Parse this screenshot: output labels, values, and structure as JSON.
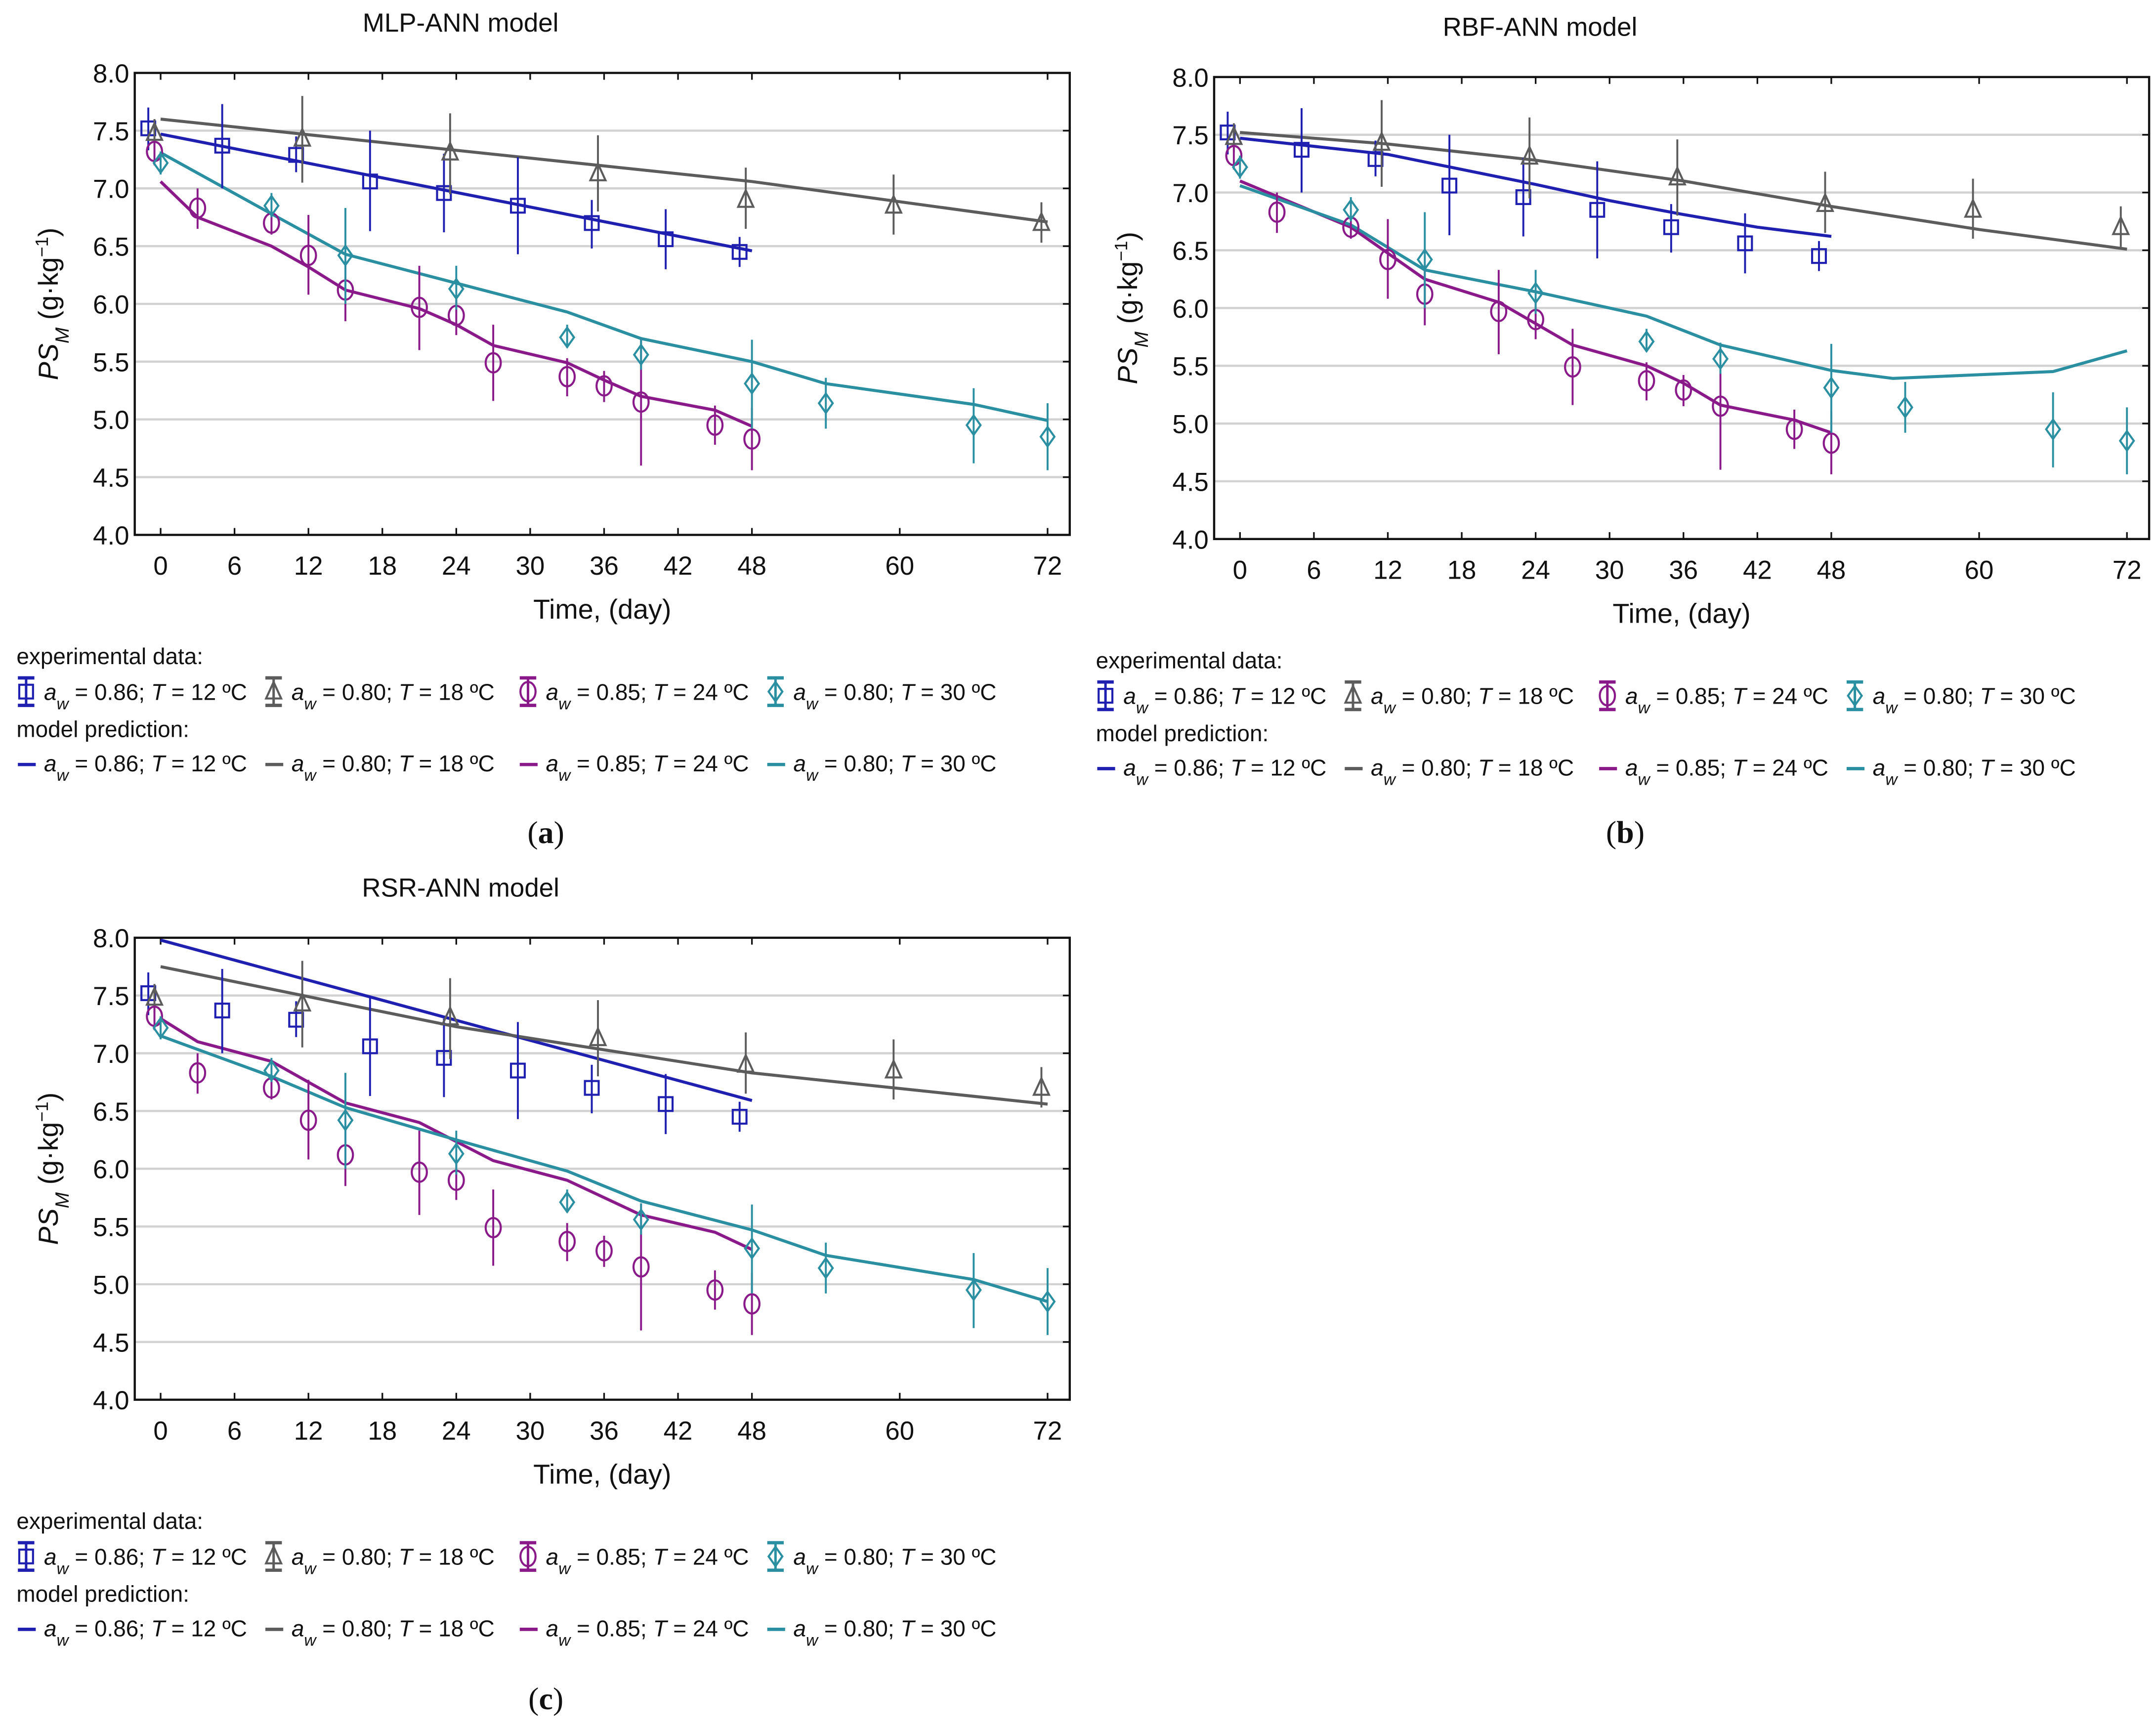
{
  "legend": {
    "experimental_heading": "experimental data:",
    "model_heading": "model prediction:",
    "entries": [
      {
        "a": "a",
        "w": "w",
        "aw_value": " = 0.86; ",
        "T": "T",
        "T_value": " = 12 ºC"
      },
      {
        "a": "a",
        "w": "w",
        "aw_value": " = 0.80; ",
        "T": "T",
        "T_value": " = 18 ºC"
      },
      {
        "a": "a",
        "w": "w",
        "aw_value": " = 0.85; ",
        "T": "T",
        "T_value": " = 24 ºC"
      },
      {
        "a": "a",
        "w": "w",
        "aw_value": " = 0.80; ",
        "T": "T",
        "T_value": " = 30 ºC"
      }
    ]
  },
  "axes": {
    "xlabel": "Time, (day)",
    "ylabel_main": "PS",
    "ylabel_sub": "M",
    "ylabel_unit": " (g·kg",
    "ylabel_exp": "−1",
    "ylabel_close": ")",
    "xticks": [
      "0",
      "6",
      "12",
      "18",
      "24",
      "30",
      "36",
      "42",
      "48",
      "60",
      "72"
    ],
    "yticks": [
      "4.0",
      "4.5",
      "5.0",
      "5.5",
      "6.0",
      "6.5",
      "7.0",
      "7.5",
      "8.0"
    ]
  },
  "chart_data": {
    "type": "line",
    "xlabel": "Time, (day)",
    "ylabel": "PS_M (g·kg^-1)",
    "xlim": [
      -2.1,
      73.8
    ],
    "ylim": [
      4.0,
      8.0
    ],
    "xtick_values": [
      0,
      6,
      12,
      18,
      24,
      30,
      36,
      42,
      48,
      60,
      72
    ],
    "ytick_values": [
      4.0,
      4.5,
      5.0,
      5.5,
      6.0,
      6.5,
      7.0,
      7.5,
      8.0
    ],
    "grid": true,
    "legend_placement": "below",
    "colors": {
      "s12": "#1f1fb0",
      "s18": "#5c5c5c",
      "s24": "#8a1a8a",
      "s30": "#2b8fa2"
    },
    "experimental": [
      {
        "key": "s12",
        "marker": "square",
        "points": [
          {
            "t": -1,
            "v": 7.52,
            "lo": 7.33,
            "hi": 7.7
          },
          {
            "t": 5,
            "v": 7.37,
            "lo": 7.0,
            "hi": 7.73
          },
          {
            "t": 11,
            "v": 7.29,
            "lo": 7.14,
            "hi": 7.45
          },
          {
            "t": 17,
            "v": 7.06,
            "lo": 6.63,
            "hi": 7.5
          },
          {
            "t": 23,
            "v": 6.96,
            "lo": 6.62,
            "hi": 7.3
          },
          {
            "t": 29,
            "v": 6.85,
            "lo": 6.43,
            "hi": 7.27
          },
          {
            "t": 35,
            "v": 6.7,
            "lo": 6.48,
            "hi": 6.9
          },
          {
            "t": 41,
            "v": 6.56,
            "lo": 6.3,
            "hi": 6.82
          },
          {
            "t": 47,
            "v": 6.45,
            "lo": 6.32,
            "hi": 6.58
          }
        ]
      },
      {
        "key": "s18",
        "marker": "triangle",
        "points": [
          {
            "t": -0.5,
            "v": 7.48,
            "lo": 7.35,
            "hi": 7.6
          },
          {
            "t": 11.5,
            "v": 7.43,
            "lo": 7.05,
            "hi": 7.8
          },
          {
            "t": 23.5,
            "v": 7.31,
            "lo": 6.95,
            "hi": 7.65
          },
          {
            "t": 35.5,
            "v": 7.13,
            "lo": 6.8,
            "hi": 7.46
          },
          {
            "t": 47.5,
            "v": 6.9,
            "lo": 6.65,
            "hi": 7.18
          },
          {
            "t": 59.5,
            "v": 6.85,
            "lo": 6.6,
            "hi": 7.12
          },
          {
            "t": 71.5,
            "v": 6.7,
            "lo": 6.53,
            "hi": 6.88
          }
        ]
      },
      {
        "key": "s24",
        "marker": "circle",
        "points": [
          {
            "t": -0.5,
            "v": 7.32,
            "lo": 7.2,
            "hi": 7.4
          },
          {
            "t": 3,
            "v": 6.83,
            "lo": 6.65,
            "hi": 7.0
          },
          {
            "t": 9,
            "v": 6.7,
            "lo": 6.6,
            "hi": 6.8
          },
          {
            "t": 12,
            "v": 6.42,
            "lo": 6.08,
            "hi": 6.77
          },
          {
            "t": 15,
            "v": 6.12,
            "lo": 5.85,
            "hi": 6.38
          },
          {
            "t": 21,
            "v": 5.97,
            "lo": 5.6,
            "hi": 6.33
          },
          {
            "t": 24,
            "v": 5.9,
            "lo": 5.73,
            "hi": 6.07
          },
          {
            "t": 27,
            "v": 5.49,
            "lo": 5.16,
            "hi": 5.82
          },
          {
            "t": 33,
            "v": 5.37,
            "lo": 5.2,
            "hi": 5.53
          },
          {
            "t": 36,
            "v": 5.29,
            "lo": 5.15,
            "hi": 5.42
          },
          {
            "t": 39,
            "v": 5.15,
            "lo": 4.6,
            "hi": 5.7
          },
          {
            "t": 45,
            "v": 4.95,
            "lo": 4.78,
            "hi": 5.12
          },
          {
            "t": 48,
            "v": 4.83,
            "lo": 4.56,
            "hi": 5.1
          }
        ]
      },
      {
        "key": "s30",
        "marker": "diamond",
        "points": [
          {
            "t": 0,
            "v": 7.22,
            "lo": 7.12,
            "hi": 7.32
          },
          {
            "t": 9,
            "v": 6.85,
            "lo": 6.75,
            "hi": 6.96
          },
          {
            "t": 15,
            "v": 6.42,
            "lo": 6.0,
            "hi": 6.83
          },
          {
            "t": 24,
            "v": 6.13,
            "lo": 5.95,
            "hi": 6.33
          },
          {
            "t": 33,
            "v": 5.71,
            "lo": 5.62,
            "hi": 5.82
          },
          {
            "t": 39,
            "v": 5.56,
            "lo": 5.43,
            "hi": 5.7
          },
          {
            "t": 48,
            "v": 5.31,
            "lo": 4.92,
            "hi": 5.69
          },
          {
            "t": 54,
            "v": 5.14,
            "lo": 4.92,
            "hi": 5.36
          },
          {
            "t": 66,
            "v": 4.95,
            "lo": 4.62,
            "hi": 5.27
          },
          {
            "t": 72,
            "v": 4.85,
            "lo": 4.56,
            "hi": 5.14
          }
        ]
      }
    ],
    "panels": [
      {
        "title": "MLP-ANN model",
        "caption": "a",
        "model": {
          "s12": [
            [
              0,
              7.47
            ],
            [
              48,
              6.46
            ]
          ],
          "s18": [
            [
              0,
              7.6
            ],
            [
              48,
              7.06
            ],
            [
              72,
              6.71
            ]
          ],
          "s24": [
            [
              0,
              7.06
            ],
            [
              3,
              6.75
            ],
            [
              9,
              6.5
            ],
            [
              12,
              6.32
            ],
            [
              15,
              6.12
            ],
            [
              21,
              5.96
            ],
            [
              24,
              5.82
            ],
            [
              27,
              5.64
            ],
            [
              33,
              5.49
            ],
            [
              36,
              5.34
            ],
            [
              39,
              5.2
            ],
            [
              45,
              5.08
            ],
            [
              48,
              4.94
            ]
          ],
          "s30": [
            [
              0,
              7.31
            ],
            [
              9,
              6.78
            ],
            [
              15,
              6.43
            ],
            [
              24,
              6.18
            ],
            [
              33,
              5.93
            ],
            [
              39,
              5.7
            ],
            [
              48,
              5.5
            ],
            [
              54,
              5.31
            ],
            [
              66,
              5.13
            ],
            [
              72,
              4.99
            ]
          ]
        }
      },
      {
        "title": "RBF-ANN model",
        "caption": "b",
        "model": {
          "s12": [
            [
              0,
              7.47
            ],
            [
              12,
              7.33
            ],
            [
              24,
              7.07
            ],
            [
              30,
              6.93
            ],
            [
              36,
              6.81
            ],
            [
              42,
              6.7
            ],
            [
              48,
              6.62
            ]
          ],
          "s18": [
            [
              0,
              7.52
            ],
            [
              12,
              7.42
            ],
            [
              24,
              7.28
            ],
            [
              36,
              7.1
            ],
            [
              48,
              6.88
            ],
            [
              60,
              6.68
            ],
            [
              72,
              6.51
            ]
          ],
          "s24": [
            [
              0,
              7.1
            ],
            [
              9,
              6.7
            ],
            [
              15,
              6.25
            ],
            [
              21,
              6.05
            ],
            [
              27,
              5.68
            ],
            [
              33,
              5.5
            ],
            [
              36,
              5.35
            ],
            [
              39,
              5.16
            ],
            [
              45,
              5.03
            ],
            [
              48,
              4.92
            ]
          ],
          "s30": [
            [
              0,
              7.06
            ],
            [
              9,
              6.72
            ],
            [
              15,
              6.33
            ],
            [
              24,
              6.14
            ],
            [
              33,
              5.93
            ],
            [
              39,
              5.68
            ],
            [
              48,
              5.46
            ],
            [
              53,
              5.39
            ],
            [
              66,
              5.45
            ],
            [
              72,
              5.63
            ]
          ]
        }
      },
      {
        "title": "RSR-ANN model",
        "caption": "c",
        "model": {
          "s12": [
            [
              0,
              7.98
            ],
            [
              48,
              6.59
            ]
          ],
          "s18": [
            [
              0,
              7.75
            ],
            [
              24,
              7.23
            ],
            [
              48,
              6.83
            ],
            [
              72,
              6.56
            ]
          ],
          "s24": [
            [
              0,
              7.3
            ],
            [
              3,
              7.1
            ],
            [
              9,
              6.93
            ],
            [
              15,
              6.57
            ],
            [
              21,
              6.4
            ],
            [
              27,
              6.07
            ],
            [
              33,
              5.9
            ],
            [
              39,
              5.6
            ],
            [
              45,
              5.45
            ],
            [
              48,
              5.3
            ]
          ],
          "s30": [
            [
              0,
              7.15
            ],
            [
              9,
              6.8
            ],
            [
              15,
              6.53
            ],
            [
              24,
              6.25
            ],
            [
              33,
              5.98
            ],
            [
              39,
              5.72
            ],
            [
              48,
              5.47
            ],
            [
              54,
              5.25
            ],
            [
              66,
              5.04
            ],
            [
              72,
              4.85
            ]
          ]
        }
      }
    ]
  }
}
